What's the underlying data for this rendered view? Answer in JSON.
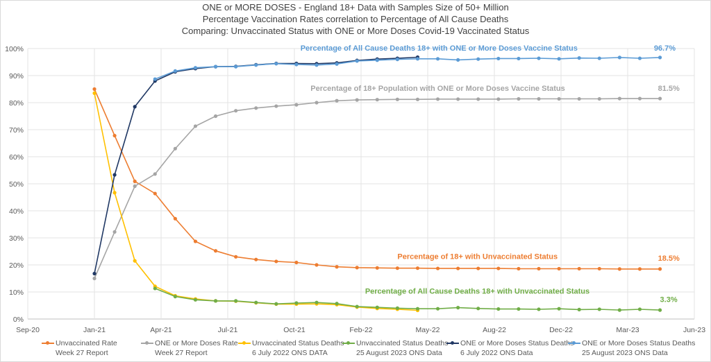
{
  "chart_data": {
    "type": "line",
    "title_lines": [
      "ONE or MORE DOSES - England 18+ Data with Samples Size of 50+ Million",
      "Percentage Vaccination Rates correlation to Percentage of All Cause Deaths",
      "Comparing: Unvaccinated Status with ONE or More Doses Covid-19 Vaccinated Status"
    ],
    "xlabel": "",
    "ylabel": "",
    "x_unit": "months since Sep-20",
    "xlim": [
      0,
      33
    ],
    "x_ticks": [
      {
        "label": "Sep-20",
        "value": 0
      },
      {
        "label": "Jan-21",
        "value": 3.3
      },
      {
        "label": "Apr-21",
        "value": 6.6
      },
      {
        "label": "Jul-21",
        "value": 9.9
      },
      {
        "label": "Oct-21",
        "value": 13.2
      },
      {
        "label": "Feb-22",
        "value": 16.5
      },
      {
        "label": "May-22",
        "value": 19.8
      },
      {
        "label": "Aug-22",
        "value": 23.1
      },
      {
        "label": "Dec-22",
        "value": 26.4
      },
      {
        "label": "Mar-23",
        "value": 29.7
      },
      {
        "label": "Jun-23",
        "value": 33
      }
    ],
    "ylim": [
      0,
      100
    ],
    "y_ticks": [
      "0%",
      "10%",
      "20%",
      "30%",
      "40%",
      "50%",
      "60%",
      "70%",
      "80%",
      "90%",
      "100%"
    ],
    "grid": true,
    "legend_position": "bottom",
    "series": [
      {
        "name": "Unvaccinated Rate",
        "name2": "Week 27 Report",
        "color": "#ED7D31",
        "x": [
          3.3,
          4.3,
          5.3,
          6.3,
          7.3,
          8.3,
          9.3,
          10.3,
          11.3,
          12.3,
          13.3,
          14.3,
          15.3,
          16.3,
          17.3,
          18.3,
          19.3,
          20.3,
          21.3,
          22.3,
          23.3,
          24.3,
          25.3,
          26.3,
          27.3,
          28.3,
          29.3,
          30.3,
          31.3
        ],
        "values": [
          85.0,
          67.8,
          50.9,
          46.4,
          37.1,
          28.7,
          25.2,
          23.0,
          22.0,
          21.3,
          20.9,
          20.0,
          19.3,
          19.0,
          18.9,
          18.8,
          18.8,
          18.7,
          18.7,
          18.7,
          18.7,
          18.6,
          18.6,
          18.6,
          18.6,
          18.6,
          18.5,
          18.5,
          18.5
        ]
      },
      {
        "name": "ONE or More Doses Rate",
        "name2": "Week 27 Report",
        "color": "#A5A5A5",
        "x": [
          3.3,
          4.3,
          5.3,
          6.3,
          7.3,
          8.3,
          9.3,
          10.3,
          11.3,
          12.3,
          13.3,
          14.3,
          15.3,
          16.3,
          17.3,
          18.3,
          19.3,
          20.3,
          21.3,
          22.3,
          23.3,
          24.3,
          25.3,
          26.3,
          27.3,
          28.3,
          29.3,
          30.3,
          31.3
        ],
        "values": [
          15.0,
          32.2,
          49.1,
          53.6,
          63.0,
          71.3,
          75.0,
          77.0,
          78.0,
          78.7,
          79.2,
          80.0,
          80.7,
          81.0,
          81.1,
          81.2,
          81.2,
          81.3,
          81.3,
          81.3,
          81.3,
          81.4,
          81.4,
          81.4,
          81.4,
          81.4,
          81.5,
          81.5,
          81.5
        ]
      },
      {
        "name": "Unvaccinated Status Deaths",
        "name2": "6 July 2022 ONS DATA",
        "color": "#FFC000",
        "x": [
          3.3,
          4.3,
          5.3,
          6.3,
          7.3,
          8.3,
          9.3,
          10.3,
          11.3,
          12.3,
          13.3,
          14.3,
          15.3,
          16.3,
          17.3,
          18.3,
          19.3
        ],
        "values": [
          83.5,
          46.7,
          21.5,
          12.1,
          8.6,
          7.4,
          6.7,
          6.6,
          6.0,
          5.5,
          5.5,
          5.6,
          5.3,
          4.4,
          3.9,
          3.6,
          3.2
        ]
      },
      {
        "name": "Unvaccinated Status Deaths",
        "name2": "25 August 2023 ONS Data",
        "color": "#70AD47",
        "x": [
          6.3,
          7.3,
          8.3,
          9.3,
          10.3,
          11.3,
          12.3,
          13.3,
          14.3,
          15.3,
          16.3,
          17.3,
          18.3,
          19.3,
          20.3,
          21.3,
          22.3,
          23.3,
          24.3,
          25.3,
          26.3,
          27.3,
          28.3,
          29.3,
          30.3,
          31.3
        ],
        "values": [
          11.3,
          8.3,
          7.1,
          6.7,
          6.7,
          6.1,
          5.6,
          5.9,
          6.1,
          5.7,
          4.6,
          4.3,
          4.0,
          3.8,
          3.8,
          4.2,
          3.9,
          3.7,
          3.7,
          3.6,
          3.8,
          3.5,
          3.6,
          3.3,
          3.6,
          3.3
        ]
      },
      {
        "name": "ONE or More Doses Status Deaths",
        "name2": "6 July 2022 ONS Data",
        "color": "#203864",
        "x": [
          3.3,
          4.3,
          5.3,
          6.3,
          7.3,
          8.3,
          9.3,
          10.3,
          11.3,
          12.3,
          13.3,
          14.3,
          15.3,
          16.3,
          17.3,
          18.3,
          19.3
        ],
        "values": [
          16.8,
          53.3,
          78.5,
          88.0,
          91.4,
          92.6,
          93.3,
          93.4,
          94.0,
          94.5,
          94.5,
          94.4,
          94.7,
          95.6,
          96.1,
          96.4,
          96.8
        ]
      },
      {
        "name": "ONE or More Doses Status Deaths",
        "name2": "25 August 2023 ONS Data",
        "color": "#5B9BD5",
        "x": [
          6.3,
          7.3,
          8.3,
          9.3,
          10.3,
          11.3,
          12.3,
          13.3,
          14.3,
          15.3,
          16.3,
          17.3,
          18.3,
          19.3,
          20.3,
          21.3,
          22.3,
          23.3,
          24.3,
          25.3,
          26.3,
          27.3,
          28.3,
          29.3,
          30.3,
          31.3
        ],
        "values": [
          88.7,
          91.7,
          92.9,
          93.3,
          93.3,
          93.9,
          94.4,
          94.1,
          93.9,
          94.3,
          95.4,
          95.7,
          96.0,
          96.2,
          96.2,
          95.8,
          96.1,
          96.3,
          96.3,
          96.4,
          96.2,
          96.5,
          96.4,
          96.7,
          96.4,
          96.7
        ]
      }
    ],
    "annotations": [
      {
        "text": "Percentage of All Cause Deaths 18+ with ONE or More Doses Vaccine Status",
        "color": "#5B9BD5",
        "x": 13.5,
        "y": 99.2
      },
      {
        "text": "96.7%",
        "color": "#5B9BD5",
        "x": 31.0,
        "y": 99.2
      },
      {
        "text": "Percentage of 18+ Population  with ONE or More Doses Vaccine Status",
        "color": "#A5A5A5",
        "x": 14.0,
        "y": 84.4
      },
      {
        "text": "81.5%",
        "color": "#A5A5A5",
        "x": 31.2,
        "y": 84.4
      },
      {
        "text": "Percentage of 18+ with Unvaccinated Status",
        "color": "#ED7D31",
        "x": 18.3,
        "y": 22.2
      },
      {
        "text": "18.5%",
        "color": "#ED7D31",
        "x": 31.2,
        "y": 21.6
      },
      {
        "text": "Percentage of All Cause Deaths 18+ with Unvaccinated Status",
        "color": "#70AD47",
        "x": 16.7,
        "y": 9.3
      },
      {
        "text": "3.3%",
        "color": "#70AD47",
        "x": 31.3,
        "y": 6.3
      }
    ]
  }
}
